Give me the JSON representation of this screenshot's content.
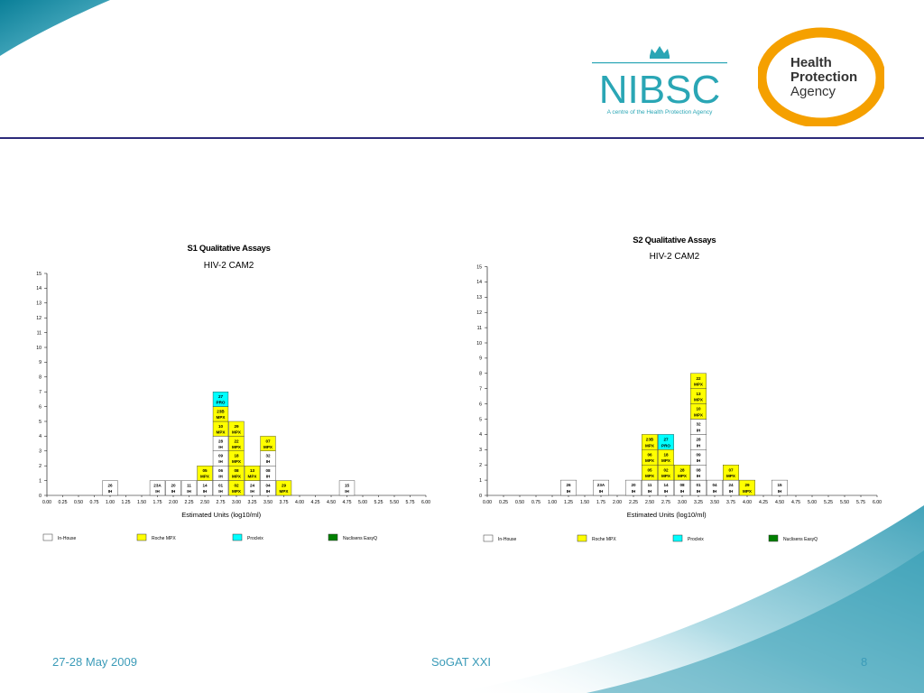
{
  "footer": {
    "date": "27-28 May 2009",
    "event": "SoGAT XXI",
    "page": "8"
  },
  "logos": {
    "nibsc": {
      "name": "NIBSC",
      "tagline": "A centre of the Health Protection Agency"
    },
    "hpa": {
      "line1": "Health",
      "line2": "Protection",
      "line3": "Agency"
    }
  },
  "colors": {
    "In-House": "#ffffff",
    "Roche MPX": "#ffff00",
    "Procleix": "#00ffff",
    "Nuclisens EasyQ": "#008000",
    "accent": "#3b9bb8",
    "rule": "#2c2a7a",
    "hpa_orange": "#f5a000"
  },
  "chart_data": [
    {
      "type": "histogram",
      "title": "S1 Qualitative Assays",
      "subtitle": "HIV-2 CAM2",
      "xlabel": "Estimated Units (log10/ml)",
      "ylim": [
        0,
        15
      ],
      "yticks": [
        "0",
        "1",
        "2",
        "3",
        "4",
        "5",
        "6",
        "7",
        "8",
        "9",
        "10",
        "11",
        "12",
        "13",
        "14",
        "15"
      ],
      "xticks": [
        "0.00",
        "0.25",
        "0.50",
        "0.75",
        "1.00",
        "1.25",
        "1.50",
        "1.75",
        "2.00",
        "2.25",
        "2.50",
        "2.75",
        "3.00",
        "3.25",
        "3.50",
        "3.75",
        "4.00",
        "4.25",
        "4.50",
        "4.75",
        "5.00",
        "5.25",
        "5.50",
        "5.75",
        "6.00"
      ],
      "legend": [
        "In-House",
        "Roche MPX",
        "Procleix",
        "Nuclisens EasyQ"
      ],
      "stacks": [
        {
          "x": 1.0,
          "boxes": [
            {
              "lab": "26",
              "assay": "IH"
            }
          ]
        },
        {
          "x": 1.75,
          "boxes": [
            {
              "lab": "23A",
              "assay": "IH"
            }
          ]
        },
        {
          "x": 2.0,
          "boxes": [
            {
              "lab": "20",
              "assay": "IH"
            }
          ]
        },
        {
          "x": 2.25,
          "boxes": [
            {
              "lab": "11",
              "assay": "IH"
            }
          ]
        },
        {
          "x": 2.5,
          "boxes": [
            {
              "lab": "14",
              "assay": "IH"
            },
            {
              "lab": "05",
              "assay": "MPX"
            }
          ]
        },
        {
          "x": 2.75,
          "boxes": [
            {
              "lab": "01",
              "assay": "IH"
            },
            {
              "lab": "06",
              "assay": "IH"
            },
            {
              "lab": "09",
              "assay": "IH"
            },
            {
              "lab": "28",
              "assay": "IH"
            },
            {
              "lab": "10",
              "assay": "MPX"
            },
            {
              "lab": "23B",
              "assay": "MPX"
            },
            {
              "lab": "27",
              "assay": "PRO"
            }
          ]
        },
        {
          "x": 3.0,
          "boxes": [
            {
              "lab": "02",
              "assay": "MPX"
            },
            {
              "lab": "08",
              "assay": "MPX"
            },
            {
              "lab": "18",
              "assay": "MPX"
            },
            {
              "lab": "22",
              "assay": "MPX"
            },
            {
              "lab": "29",
              "assay": "MPX"
            }
          ]
        },
        {
          "x": 3.25,
          "boxes": [
            {
              "lab": "24",
              "assay": "IH"
            },
            {
              "lab": "13",
              "assay": "MPX"
            }
          ]
        },
        {
          "x": 3.5,
          "boxes": [
            {
              "lab": "04",
              "assay": "IH"
            },
            {
              "lab": "08",
              "assay": "IH"
            },
            {
              "lab": "32",
              "assay": "IH"
            },
            {
              "lab": "07",
              "assay": "MPX"
            }
          ]
        },
        {
          "x": 3.75,
          "boxes": [
            {
              "lab": "29",
              "assay": "MPX"
            }
          ]
        },
        {
          "x": 4.75,
          "boxes": [
            {
              "lab": "15",
              "assay": "IH"
            }
          ]
        }
      ]
    },
    {
      "type": "histogram",
      "title": "S2 Qualitative Assays",
      "subtitle": "HIV-2 CAM2",
      "xlabel": "Estimated Units (log10/ml)",
      "ylim": [
        0,
        15
      ],
      "yticks": [
        "0",
        "1",
        "2",
        "3",
        "4",
        "5",
        "6",
        "7",
        "8",
        "9",
        "10",
        "11",
        "12",
        "13",
        "14",
        "15"
      ],
      "xticks": [
        "0.00",
        "0.25",
        "0.50",
        "0.75",
        "1.00",
        "1.25",
        "1.50",
        "1.75",
        "2.00",
        "2.25",
        "2.50",
        "2.75",
        "3.00",
        "3.25",
        "3.50",
        "3.75",
        "4.00",
        "4.25",
        "4.50",
        "4.75",
        "5.00",
        "5.25",
        "5.50",
        "5.75",
        "6.00"
      ],
      "legend": [
        "In-House",
        "Roche MPX",
        "Procleix",
        "Nuclisens EasyQ"
      ],
      "stacks": [
        {
          "x": 1.25,
          "boxes": [
            {
              "lab": "26",
              "assay": "IH"
            }
          ]
        },
        {
          "x": 1.75,
          "boxes": [
            {
              "lab": "23A",
              "assay": "IH"
            }
          ]
        },
        {
          "x": 2.25,
          "boxes": [
            {
              "lab": "20",
              "assay": "IH"
            }
          ]
        },
        {
          "x": 2.5,
          "boxes": [
            {
              "lab": "11",
              "assay": "IH"
            },
            {
              "lab": "05",
              "assay": "MPX"
            },
            {
              "lab": "06",
              "assay": "MPX"
            },
            {
              "lab": "23B",
              "assay": "MPX"
            }
          ]
        },
        {
          "x": 2.75,
          "boxes": [
            {
              "lab": "14",
              "assay": "IH"
            },
            {
              "lab": "02",
              "assay": "MPX"
            },
            {
              "lab": "18",
              "assay": "MPX"
            },
            {
              "lab": "27",
              "assay": "PRO"
            }
          ]
        },
        {
          "x": 3.0,
          "boxes": [
            {
              "lab": "08",
              "assay": "IH"
            },
            {
              "lab": "28",
              "assay": "MPX"
            }
          ]
        },
        {
          "x": 3.25,
          "boxes": [
            {
              "lab": "01",
              "assay": "IH"
            },
            {
              "lab": "08",
              "assay": "IH"
            },
            {
              "lab": "09",
              "assay": "IH"
            },
            {
              "lab": "28",
              "assay": "IH"
            },
            {
              "lab": "32",
              "assay": "IH"
            },
            {
              "lab": "10",
              "assay": "MPX"
            },
            {
              "lab": "13",
              "assay": "MPX"
            },
            {
              "lab": "22",
              "assay": "MPX"
            }
          ]
        },
        {
          "x": 3.5,
          "boxes": [
            {
              "lab": "04",
              "assay": "IH"
            }
          ]
        },
        {
          "x": 3.75,
          "boxes": [
            {
              "lab": "24",
              "assay": "IH"
            },
            {
              "lab": "07",
              "assay": "MPX"
            }
          ]
        },
        {
          "x": 4.0,
          "boxes": [
            {
              "lab": "29",
              "assay": "MPX"
            }
          ]
        },
        {
          "x": 4.5,
          "boxes": [
            {
              "lab": "15",
              "assay": "IH"
            }
          ]
        }
      ]
    }
  ]
}
